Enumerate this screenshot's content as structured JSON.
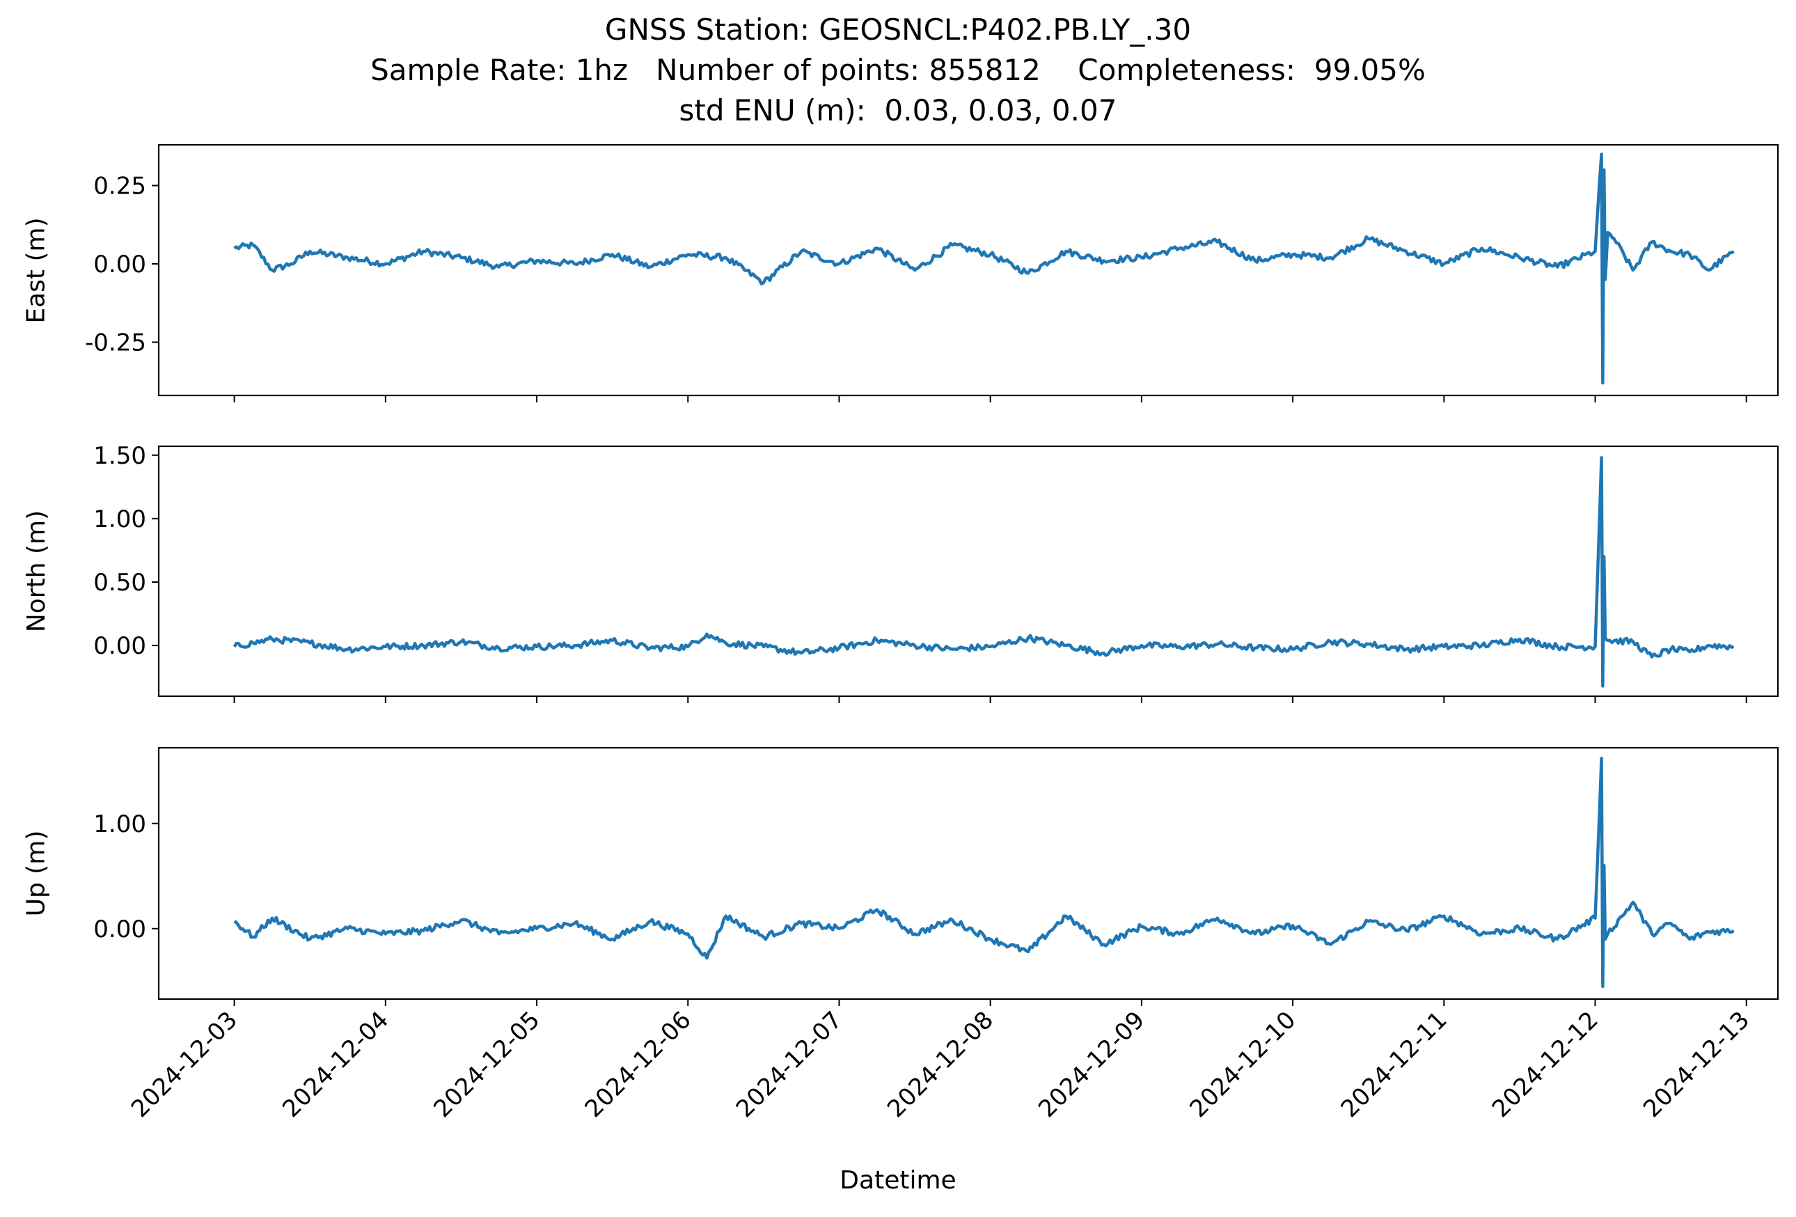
{
  "title": {
    "line1": "GNSS Station: GEOSNCL:P402.PB.LY_.30",
    "line2": "Sample Rate: 1hz   Number of points: 855812    Completeness:  99.05%",
    "line3": "std ENU (m):  0.03, 0.03, 0.07"
  },
  "xlabel": "Datetime",
  "colors": {
    "series": "#1f77b4",
    "axes": "#000000",
    "background": "#ffffff"
  },
  "chart_data": {
    "type": "line",
    "x_axis": {
      "label": "Datetime",
      "range": [
        "2024-12-02T12:00",
        "2024-12-13T05:00"
      ],
      "data_range": [
        "2024-12-03T00:00",
        "2024-12-12T22:00"
      ],
      "ticks": [
        "2024-12-03",
        "2024-12-04",
        "2024-12-05",
        "2024-12-06",
        "2024-12-07",
        "2024-12-08",
        "2024-12-09",
        "2024-12-10",
        "2024-12-11",
        "2024-12-12",
        "2024-12-13"
      ],
      "tick_rotation_deg": 45
    },
    "panels": [
      {
        "name": "east",
        "ylabel": "East (m)",
        "ylim": [
          -0.42,
          0.38
        ],
        "yticks": [
          0.25,
          0.0,
          -0.25
        ],
        "ytick_labels": [
          "0.25",
          "0.00",
          "-0.25"
        ],
        "series": [
          {
            "x": [
              "2024-12-03T00:00",
              "2024-12-03T03:00",
              "2024-12-03T06:00",
              "2024-12-03T09:00",
              "2024-12-03T12:00",
              "2024-12-03T18:00",
              "2024-12-04T00:00",
              "2024-12-04T06:00",
              "2024-12-04T12:00",
              "2024-12-04T18:00",
              "2024-12-05T00:00",
              "2024-12-05T06:00",
              "2024-12-05T12:00",
              "2024-12-05T18:00",
              "2024-12-06T00:00",
              "2024-12-06T06:00",
              "2024-12-06T12:00",
              "2024-12-06T18:00",
              "2024-12-07T00:00",
              "2024-12-07T06:00",
              "2024-12-07T12:00",
              "2024-12-07T18:00",
              "2024-12-08T00:00",
              "2024-12-08T06:00",
              "2024-12-08T12:00",
              "2024-12-08T18:00",
              "2024-12-09T00:00",
              "2024-12-09T06:00",
              "2024-12-09T12:00",
              "2024-12-09T18:00",
              "2024-12-10T00:00",
              "2024-12-10T06:00",
              "2024-12-10T12:00",
              "2024-12-10T18:00",
              "2024-12-11T00:00",
              "2024-12-11T06:00",
              "2024-12-11T12:00",
              "2024-12-11T18:00",
              "2024-12-12T00:00",
              "2024-12-12T01:00",
              "2024-12-12T01:12",
              "2024-12-12T01:24",
              "2024-12-12T01:36",
              "2024-12-12T02:00",
              "2024-12-12T03:00",
              "2024-12-12T06:00",
              "2024-12-12T09:00",
              "2024-12-12T12:00",
              "2024-12-12T15:00",
              "2024-12-12T18:00",
              "2024-12-12T22:00"
            ],
            "y": [
              0.05,
              0.06,
              -0.02,
              0.0,
              0.04,
              0.02,
              0.0,
              0.04,
              0.02,
              -0.01,
              0.01,
              0.0,
              0.03,
              -0.01,
              0.03,
              0.02,
              -0.06,
              0.04,
              0.0,
              0.05,
              -0.02,
              0.06,
              0.03,
              -0.03,
              0.04,
              0.01,
              0.02,
              0.05,
              0.07,
              0.01,
              0.03,
              0.02,
              0.08,
              0.04,
              0.0,
              0.05,
              0.02,
              -0.01,
              0.04,
              0.35,
              -0.38,
              0.3,
              -0.05,
              0.1,
              0.08,
              -0.02,
              0.07,
              0.04,
              0.03,
              -0.02,
              0.04
            ]
          }
        ]
      },
      {
        "name": "north",
        "ylabel": "North (m)",
        "ylim": [
          -0.4,
          1.57
        ],
        "yticks": [
          1.5,
          1.0,
          0.5,
          0.0
        ],
        "ytick_labels": [
          "1.50",
          "1.00",
          "0.50",
          "0.00"
        ],
        "series": [
          {
            "x": [
              "2024-12-03T00:00",
              "2024-12-03T03:00",
              "2024-12-03T06:00",
              "2024-12-03T12:00",
              "2024-12-03T18:00",
              "2024-12-04T00:00",
              "2024-12-04T06:00",
              "2024-12-04T12:00",
              "2024-12-04T18:00",
              "2024-12-05T00:00",
              "2024-12-05T06:00",
              "2024-12-05T12:00",
              "2024-12-05T18:00",
              "2024-12-06T00:00",
              "2024-12-06T03:00",
              "2024-12-06T06:00",
              "2024-12-06T12:00",
              "2024-12-06T18:00",
              "2024-12-07T00:00",
              "2024-12-07T06:00",
              "2024-12-07T12:00",
              "2024-12-07T18:00",
              "2024-12-08T00:00",
              "2024-12-08T06:00",
              "2024-12-08T12:00",
              "2024-12-08T18:00",
              "2024-12-09T00:00",
              "2024-12-09T06:00",
              "2024-12-09T12:00",
              "2024-12-09T18:00",
              "2024-12-10T00:00",
              "2024-12-10T06:00",
              "2024-12-10T12:00",
              "2024-12-10T18:00",
              "2024-12-11T00:00",
              "2024-12-11T06:00",
              "2024-12-11T12:00",
              "2024-12-11T18:00",
              "2024-12-12T00:00",
              "2024-12-12T01:00",
              "2024-12-12T01:12",
              "2024-12-12T01:24",
              "2024-12-12T01:36",
              "2024-12-12T02:00",
              "2024-12-12T06:00",
              "2024-12-12T09:00",
              "2024-12-12T12:00",
              "2024-12-12T15:00",
              "2024-12-12T18:00",
              "2024-12-12T22:00"
            ],
            "y": [
              -0.01,
              0.02,
              0.05,
              0.02,
              -0.03,
              -0.01,
              0.0,
              0.03,
              -0.02,
              -0.01,
              0.0,
              0.04,
              -0.02,
              -0.01,
              0.09,
              0.02,
              -0.01,
              -0.06,
              -0.02,
              0.04,
              0.0,
              -0.03,
              -0.01,
              0.06,
              0.0,
              -0.06,
              0.0,
              -0.01,
              0.01,
              -0.02,
              -0.03,
              0.03,
              0.01,
              -0.03,
              -0.01,
              0.0,
              0.05,
              -0.01,
              -0.01,
              1.48,
              -0.32,
              0.7,
              0.05,
              0.04,
              0.03,
              -0.09,
              -0.03,
              -0.05,
              0.0,
              -0.01
            ]
          }
        ]
      },
      {
        "name": "up",
        "ylabel": "Up (m)",
        "ylim": [
          -0.67,
          1.72
        ],
        "yticks": [
          1.0,
          0.0
        ],
        "ytick_labels": [
          "1.00",
          "0.00"
        ],
        "series": [
          {
            "x": [
              "2024-12-03T00:00",
              "2024-12-03T03:00",
              "2024-12-03T06:00",
              "2024-12-03T12:00",
              "2024-12-03T18:00",
              "2024-12-04T00:00",
              "2024-12-04T06:00",
              "2024-12-04T12:00",
              "2024-12-04T18:00",
              "2024-12-05T00:00",
              "2024-12-05T06:00",
              "2024-12-05T12:00",
              "2024-12-05T18:00",
              "2024-12-06T00:00",
              "2024-12-06T03:00",
              "2024-12-06T06:00",
              "2024-12-06T12:00",
              "2024-12-06T18:00",
              "2024-12-07T00:00",
              "2024-12-07T06:00",
              "2024-12-07T12:00",
              "2024-12-07T18:00",
              "2024-12-08T00:00",
              "2024-12-08T06:00",
              "2024-12-08T12:00",
              "2024-12-08T18:00",
              "2024-12-09T00:00",
              "2024-12-09T06:00",
              "2024-12-09T12:00",
              "2024-12-09T18:00",
              "2024-12-10T00:00",
              "2024-12-10T06:00",
              "2024-12-10T12:00",
              "2024-12-10T18:00",
              "2024-12-11T00:00",
              "2024-12-11T06:00",
              "2024-12-11T12:00",
              "2024-12-11T18:00",
              "2024-12-12T00:00",
              "2024-12-12T01:00",
              "2024-12-12T01:12",
              "2024-12-12T01:24",
              "2024-12-12T01:36",
              "2024-12-12T02:00",
              "2024-12-12T06:00",
              "2024-12-12T09:00",
              "2024-12-12T12:00",
              "2024-12-12T15:00",
              "2024-12-12T18:00",
              "2024-12-12T22:00"
            ],
            "y": [
              0.07,
              -0.08,
              0.1,
              -0.1,
              0.0,
              -0.05,
              -0.02,
              0.08,
              -0.05,
              0.0,
              0.05,
              -0.1,
              0.07,
              -0.05,
              -0.28,
              0.12,
              -0.08,
              0.05,
              0.0,
              0.18,
              -0.05,
              0.08,
              -0.1,
              -0.22,
              0.12,
              -0.15,
              0.02,
              -0.05,
              0.1,
              -0.05,
              0.03,
              -0.15,
              0.07,
              -0.02,
              0.12,
              -0.05,
              0.0,
              -0.1,
              0.1,
              1.62,
              -0.55,
              0.6,
              -0.1,
              -0.05,
              0.25,
              -0.05,
              0.05,
              -0.1,
              -0.03,
              -0.02
            ]
          }
        ]
      }
    ]
  }
}
